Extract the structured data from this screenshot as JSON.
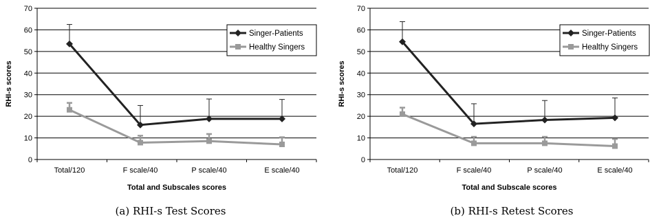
{
  "chart_data": [
    {
      "type": "line",
      "caption": "(a) RHI-s Test Scores",
      "xlabel": "Total and Subscales scores",
      "ylabel": "RHI-s scores",
      "categories": [
        "Total/120",
        "F scale/40",
        "P scale/40",
        "E scale/40"
      ],
      "ylim": [
        0,
        70
      ],
      "yticks": [
        0,
        10,
        20,
        30,
        40,
        50,
        60,
        70
      ],
      "grid": "horizontal",
      "legend_position": "top-right",
      "series": [
        {
          "name": "Singer-Patients",
          "color": "#222222",
          "marker": "diamond",
          "values": [
            53.5,
            16,
            18.8,
            18.8
          ],
          "error_upper": [
            9,
            9,
            9.2,
            9
          ]
        },
        {
          "name": "Healthy Singers",
          "color": "#9a9a9a",
          "marker": "square",
          "values": [
            23,
            7.8,
            8.5,
            7
          ],
          "error_upper": [
            3.2,
            3.2,
            3.3,
            3.3
          ]
        }
      ]
    },
    {
      "type": "line",
      "caption": "(b) RHI-s Retest Scores",
      "xlabel": "Total  and Subscale scores",
      "ylabel": "RHI-s scores",
      "categories": [
        "Total/120",
        "F scale/40",
        "P scale/40",
        "E scale/40"
      ],
      "ylim": [
        0,
        70
      ],
      "yticks": [
        0,
        10,
        20,
        30,
        40,
        50,
        60,
        70
      ],
      "grid": "horizontal",
      "legend_position": "top-right",
      "series": [
        {
          "name": "Singer-Patients",
          "color": "#222222",
          "marker": "diamond",
          "values": [
            54.5,
            16.5,
            18.3,
            19.3
          ],
          "error_upper": [
            9.3,
            9.3,
            9,
            9.2
          ]
        },
        {
          "name": "Healthy Singers",
          "color": "#9a9a9a",
          "marker": "square",
          "values": [
            21,
            7.5,
            7.5,
            6.2
          ],
          "error_upper": [
            3,
            3,
            3,
            3.3
          ]
        }
      ]
    }
  ]
}
